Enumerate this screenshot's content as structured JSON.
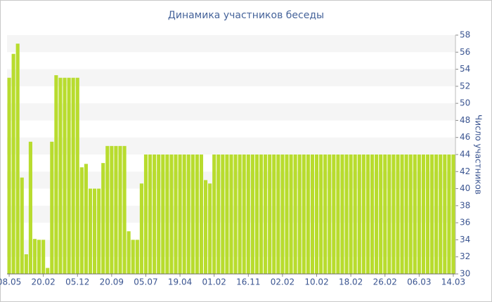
{
  "chart_data": {
    "type": "bar",
    "title": "Динамика участников беседы",
    "y_axis_label": "Число участников",
    "color": "#b8dc2e",
    "grid": true,
    "yaxis_side": "right",
    "ylim": [
      30,
      58
    ],
    "yticks": [
      30,
      32,
      34,
      36,
      38,
      40,
      42,
      44,
      46,
      48,
      50,
      52,
      54,
      56,
      58
    ],
    "categories": [
      "08.05",
      null,
      null,
      null,
      null,
      null,
      null,
      null,
      "20.02",
      null,
      null,
      null,
      null,
      null,
      null,
      null,
      "05.12",
      null,
      null,
      null,
      null,
      null,
      null,
      null,
      "20.09",
      null,
      null,
      null,
      null,
      null,
      null,
      null,
      "05.07",
      null,
      null,
      null,
      null,
      null,
      null,
      null,
      "19.04",
      null,
      null,
      null,
      null,
      null,
      null,
      null,
      "01.02",
      null,
      null,
      null,
      null,
      null,
      null,
      null,
      "16.11",
      null,
      null,
      null,
      null,
      null,
      null,
      null,
      "02.02",
      null,
      null,
      null,
      null,
      null,
      null,
      null,
      "10.02",
      null,
      null,
      null,
      null,
      null,
      null,
      null,
      "18.02",
      null,
      null,
      null,
      null,
      null,
      null,
      null,
      "26.02",
      null,
      null,
      null,
      null,
      null,
      null,
      null,
      "06.03",
      null,
      null,
      null,
      null,
      null,
      null,
      null,
      "14.03"
    ],
    "values": [
      53,
      55.8,
      57,
      41.3,
      32.3,
      45.5,
      34.1,
      34,
      34,
      30.7,
      45.5,
      53.3,
      53,
      53,
      53,
      53,
      53,
      42.5,
      42.9,
      40,
      40,
      40,
      43,
      45,
      45,
      45,
      45,
      45,
      35,
      34,
      34,
      40.6,
      44,
      44,
      44,
      44,
      44,
      44,
      44,
      44,
      44,
      44,
      44,
      44,
      44,
      44,
      41,
      40.6,
      44,
      44,
      44,
      44,
      44,
      44,
      44,
      44,
      44,
      44,
      44,
      44,
      44,
      44,
      44,
      44,
      44,
      44,
      44,
      44,
      44,
      44,
      44,
      44,
      44,
      44,
      44,
      44,
      44,
      44,
      44,
      44,
      44,
      44,
      44,
      44,
      44,
      44,
      44,
      44,
      44,
      44,
      44,
      44,
      44,
      44,
      44,
      44,
      44,
      44,
      44,
      44,
      44,
      44,
      44,
      44,
      44
    ]
  }
}
